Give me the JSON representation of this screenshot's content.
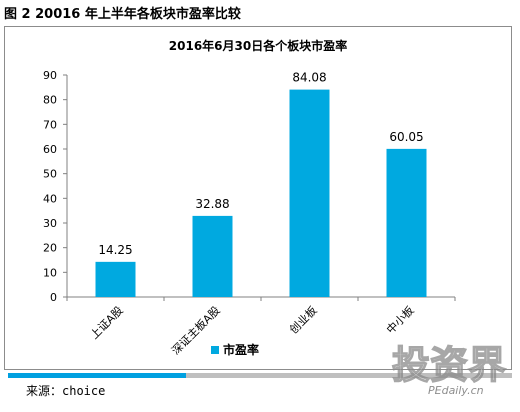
{
  "figure_title": "图 2 20016 年上半年各板块市盈率比较",
  "source_text": "来源：choice",
  "watermark": {
    "glyphs": "投资界",
    "site": "PEdaily.cn"
  },
  "colors": {
    "bar": "#00a9e0",
    "accent_blue": "#00a0e0",
    "gray": "#bfbfbf"
  },
  "chart_data": {
    "type": "bar",
    "title": "2016年6月30日各个板块市盈率",
    "categories": [
      "上证A股",
      "深证主板A股",
      "创业板",
      "中小板"
    ],
    "series": [
      {
        "name": "市盈率",
        "values": [
          14.25,
          32.88,
          84.08,
          60.05
        ]
      }
    ],
    "value_labels": [
      "14.25",
      "32.88",
      "84.08",
      "60.05"
    ],
    "xlabel": "",
    "ylabel": "",
    "ylim": [
      0,
      90
    ],
    "yticks": [
      "0",
      "10",
      "20",
      "30",
      "40",
      "50",
      "60",
      "70",
      "80",
      "90"
    ],
    "grid": false,
    "legend_position": "bottom"
  }
}
